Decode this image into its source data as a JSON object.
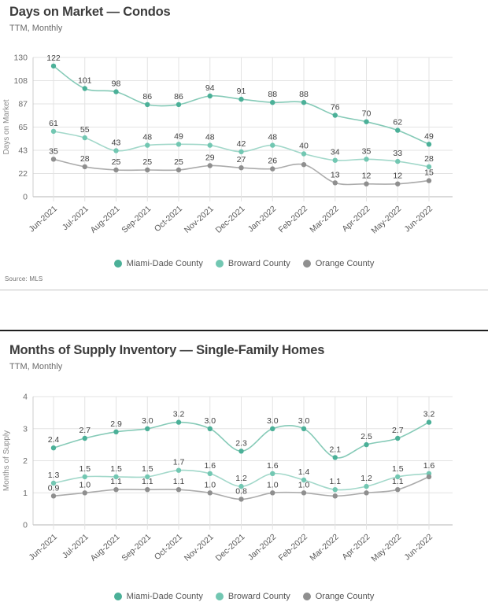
{
  "page": {
    "source_label": "Source: MLS"
  },
  "colors": {
    "grid": "#e3e3e3",
    "axis_bottom": "#b5b5b5",
    "axis_left": "#cccccc",
    "tick_text": "#6b6b6b",
    "month_text": "#5a5a5a",
    "point_label": "#3f3f3f",
    "ylabel_text": "#8a8a8a"
  },
  "legend": {
    "items": [
      {
        "label": "Miami-Dade County",
        "color": "#4bb098"
      },
      {
        "label": "Broward County",
        "color": "#72c7b2"
      },
      {
        "label": "Orange County",
        "color": "#8f8f8f"
      }
    ]
  },
  "chart_data": [
    {
      "type": "line",
      "title": "Days on Market — Condos",
      "subtitle": "TTM, Monthly",
      "ylabel": "Days on Market",
      "xlabel": "",
      "ylim": [
        0,
        130
      ],
      "ytick_labels": [
        "0",
        "22",
        "43",
        "65",
        "87",
        "108",
        "130"
      ],
      "grid": true,
      "legend_position": "bottom",
      "categories": [
        "Jun-2021",
        "Jul-2021",
        "Aug-2021",
        "Sep-2021",
        "Oct-2021",
        "Nov-2021",
        "Dec-2021",
        "Jan-2022",
        "Feb-2022",
        "Mar-2022",
        "Apr-2022",
        "May-2022",
        "Jun-2022"
      ],
      "series": [
        {
          "name": "Miami-Dade County",
          "marker_color": "#4bb098",
          "line_color": "#85cab7",
          "values": [
            122,
            101,
            98,
            86,
            86,
            94,
            91,
            88,
            88,
            76,
            70,
            62,
            49
          ],
          "point_labels": [
            "122",
            "101",
            "98",
            "86",
            "86",
            "94",
            "91",
            "88",
            "88",
            "76",
            "70",
            "62",
            "49"
          ]
        },
        {
          "name": "Broward County",
          "marker_color": "#72c7b2",
          "line_color": "#a2d8ca",
          "values": [
            61,
            55,
            43,
            48,
            49,
            48,
            42,
            48,
            40,
            34,
            35,
            33,
            28
          ],
          "point_labels": [
            "61",
            "55",
            "43",
            "48",
            "49",
            "48",
            "42",
            "48",
            "40",
            "34",
            "35",
            "33",
            "28"
          ]
        },
        {
          "name": "Orange County",
          "marker_color": "#8f8f8f",
          "line_color": "#ababab",
          "values": [
            35,
            28,
            25,
            25,
            25,
            29,
            27,
            26,
            30,
            13,
            12,
            12,
            15
          ],
          "point_labels": [
            "35",
            "28",
            "25",
            "25",
            "25",
            "29",
            "27",
            "26",
            "",
            "13",
            "12",
            "12",
            "15"
          ]
        }
      ]
    },
    {
      "type": "line",
      "title": "Months of Supply Inventory — Single-Family Homes",
      "subtitle": "TTM, Monthly",
      "ylabel": "Months of Supply",
      "xlabel": "",
      "ylim": [
        0,
        4
      ],
      "ytick_labels": [
        "0",
        "1",
        "2",
        "3",
        "4"
      ],
      "grid": true,
      "legend_position": "bottom",
      "categories": [
        "Jun-2021",
        "Jul-2021",
        "Aug-2021",
        "Sep-2021",
        "Oct-2021",
        "Nov-2021",
        "Dec-2021",
        "Jan-2022",
        "Feb-2022",
        "Mar-2022",
        "Apr-2022",
        "May-2022",
        "Jun-2022"
      ],
      "series": [
        {
          "name": "Miami-Dade County",
          "marker_color": "#4bb098",
          "line_color": "#85cab7",
          "values": [
            2.4,
            2.7,
            2.9,
            3.0,
            3.2,
            3.0,
            2.3,
            3.0,
            3.0,
            2.1,
            2.5,
            2.7,
            3.2
          ],
          "point_labels": [
            "2.4",
            "2.7",
            "2.9",
            "3.0",
            "3.2",
            "3.0",
            "2.3",
            "3.0",
            "3.0",
            "2.1",
            "2.5",
            "2.7",
            "3.2"
          ]
        },
        {
          "name": "Broward County",
          "marker_color": "#72c7b2",
          "line_color": "#a2d8ca",
          "values": [
            1.3,
            1.5,
            1.5,
            1.5,
            1.7,
            1.6,
            1.2,
            1.6,
            1.4,
            1.1,
            1.2,
            1.5,
            1.6
          ],
          "point_labels": [
            "1.3",
            "1.5",
            "1.5",
            "1.5",
            "1.7",
            "1.6",
            "1.2",
            "1.6",
            "1.4",
            "1.1",
            "1.2",
            "1.5",
            "1.6"
          ]
        },
        {
          "name": "Orange County",
          "marker_color": "#8f8f8f",
          "line_color": "#ababab",
          "values": [
            0.9,
            1.0,
            1.1,
            1.1,
            1.1,
            1.0,
            0.8,
            1.0,
            1.0,
            0.9,
            1.0,
            1.1,
            1.5
          ],
          "point_labels": [
            "0.9",
            "1.0",
            "1.1",
            "1.1",
            "1.1",
            "1.0",
            "0.8",
            "1.0",
            "1.0",
            "",
            "",
            "1.1",
            ""
          ]
        }
      ]
    }
  ]
}
